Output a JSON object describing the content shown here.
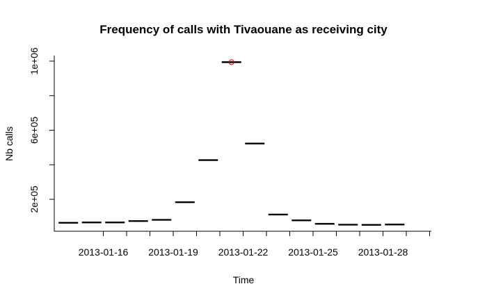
{
  "chart_data": {
    "type": "box",
    "title": "Frequency of calls with Tivaouane as receiving city",
    "xlabel": "Time",
    "ylabel": "Nb calls",
    "x_tick_labels": [
      "2013-01-16",
      "2013-01-19",
      "2013-01-22",
      "2013-01-25",
      "2013-01-28"
    ],
    "y_tick_labels": [
      "2e+05",
      "6e+05",
      "1e+06"
    ],
    "y_ticks": [
      200000,
      400000,
      600000,
      800000,
      1000000
    ],
    "ylim": [
      20000,
      1030000
    ],
    "x": [
      "2013-01-15",
      "2013-01-16",
      "2013-01-17",
      "2013-01-18",
      "2013-01-19",
      "2013-01-20",
      "2013-01-21",
      "2013-01-22",
      "2013-01-23",
      "2013-01-24",
      "2013-01-25",
      "2013-01-26",
      "2013-01-27",
      "2013-01-28",
      "2013-01-29",
      "2013-01-30"
    ],
    "values": [
      64000,
      66000,
      66000,
      74000,
      81000,
      183000,
      427000,
      994000,
      523000,
      112000,
      78000,
      58000,
      53000,
      52000,
      54000,
      0
    ],
    "outliers": [
      {
        "x": "2013-01-22",
        "y": 994000
      }
    ],
    "outlier_color": "#e0000b",
    "grid": false,
    "legend": "none"
  }
}
